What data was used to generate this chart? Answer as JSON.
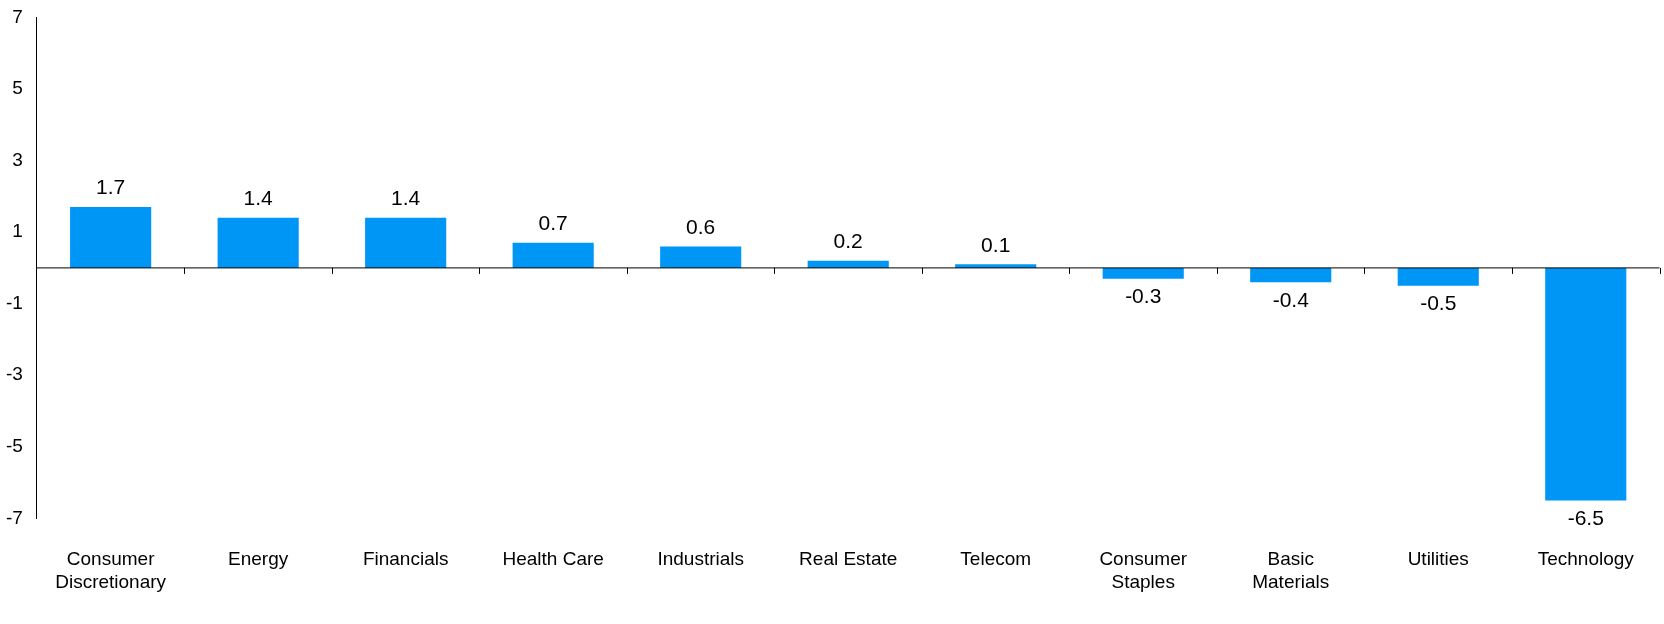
{
  "chart_data": {
    "type": "bar",
    "categories": [
      "Consumer Discretionary",
      "Energy",
      "Financials",
      "Health Care",
      "Industrials",
      "Real Estate",
      "Telecom",
      "Consumer Staples",
      "Basic Materials",
      "Utilities",
      "Technology"
    ],
    "values": [
      1.7,
      1.4,
      1.4,
      0.7,
      0.6,
      0.2,
      0.1,
      -0.3,
      -0.4,
      -0.5,
      -6.5
    ],
    "color": "#0096f5",
    "ylim": [
      -7,
      7
    ],
    "yticks": [
      -7,
      -5,
      -3,
      -1,
      1,
      3,
      5,
      7
    ],
    "grid": false,
    "legend": false,
    "data_labels": true
  }
}
